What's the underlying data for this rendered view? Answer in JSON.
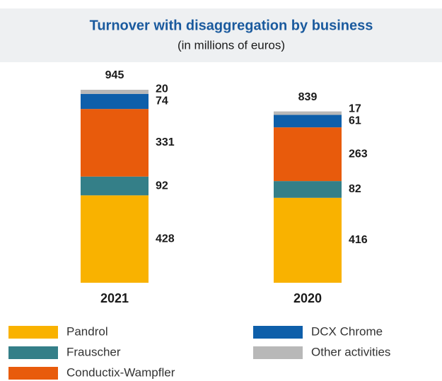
{
  "chart_data": {
    "type": "stacked_bar",
    "title": "Turnover with disaggregation by business",
    "subtitle": "(in millions of euros)",
    "categories": [
      "2021",
      "2020"
    ],
    "totals": [
      945,
      839
    ],
    "series": [
      {
        "name": "Pandrol",
        "color": "#f9b200",
        "values": [
          428,
          416
        ]
      },
      {
        "name": "Frauscher",
        "color": "#347f88",
        "values": [
          92,
          82
        ]
      },
      {
        "name": "Conductix-Wampfler",
        "color": "#e85b0c",
        "values": [
          331,
          263
        ]
      },
      {
        "name": "DCX Chrome",
        "color": "#0e5faa",
        "values": [
          74,
          61
        ]
      },
      {
        "name": "Other activities",
        "color": "#b8b8b8",
        "values": [
          20,
          17
        ]
      }
    ]
  }
}
